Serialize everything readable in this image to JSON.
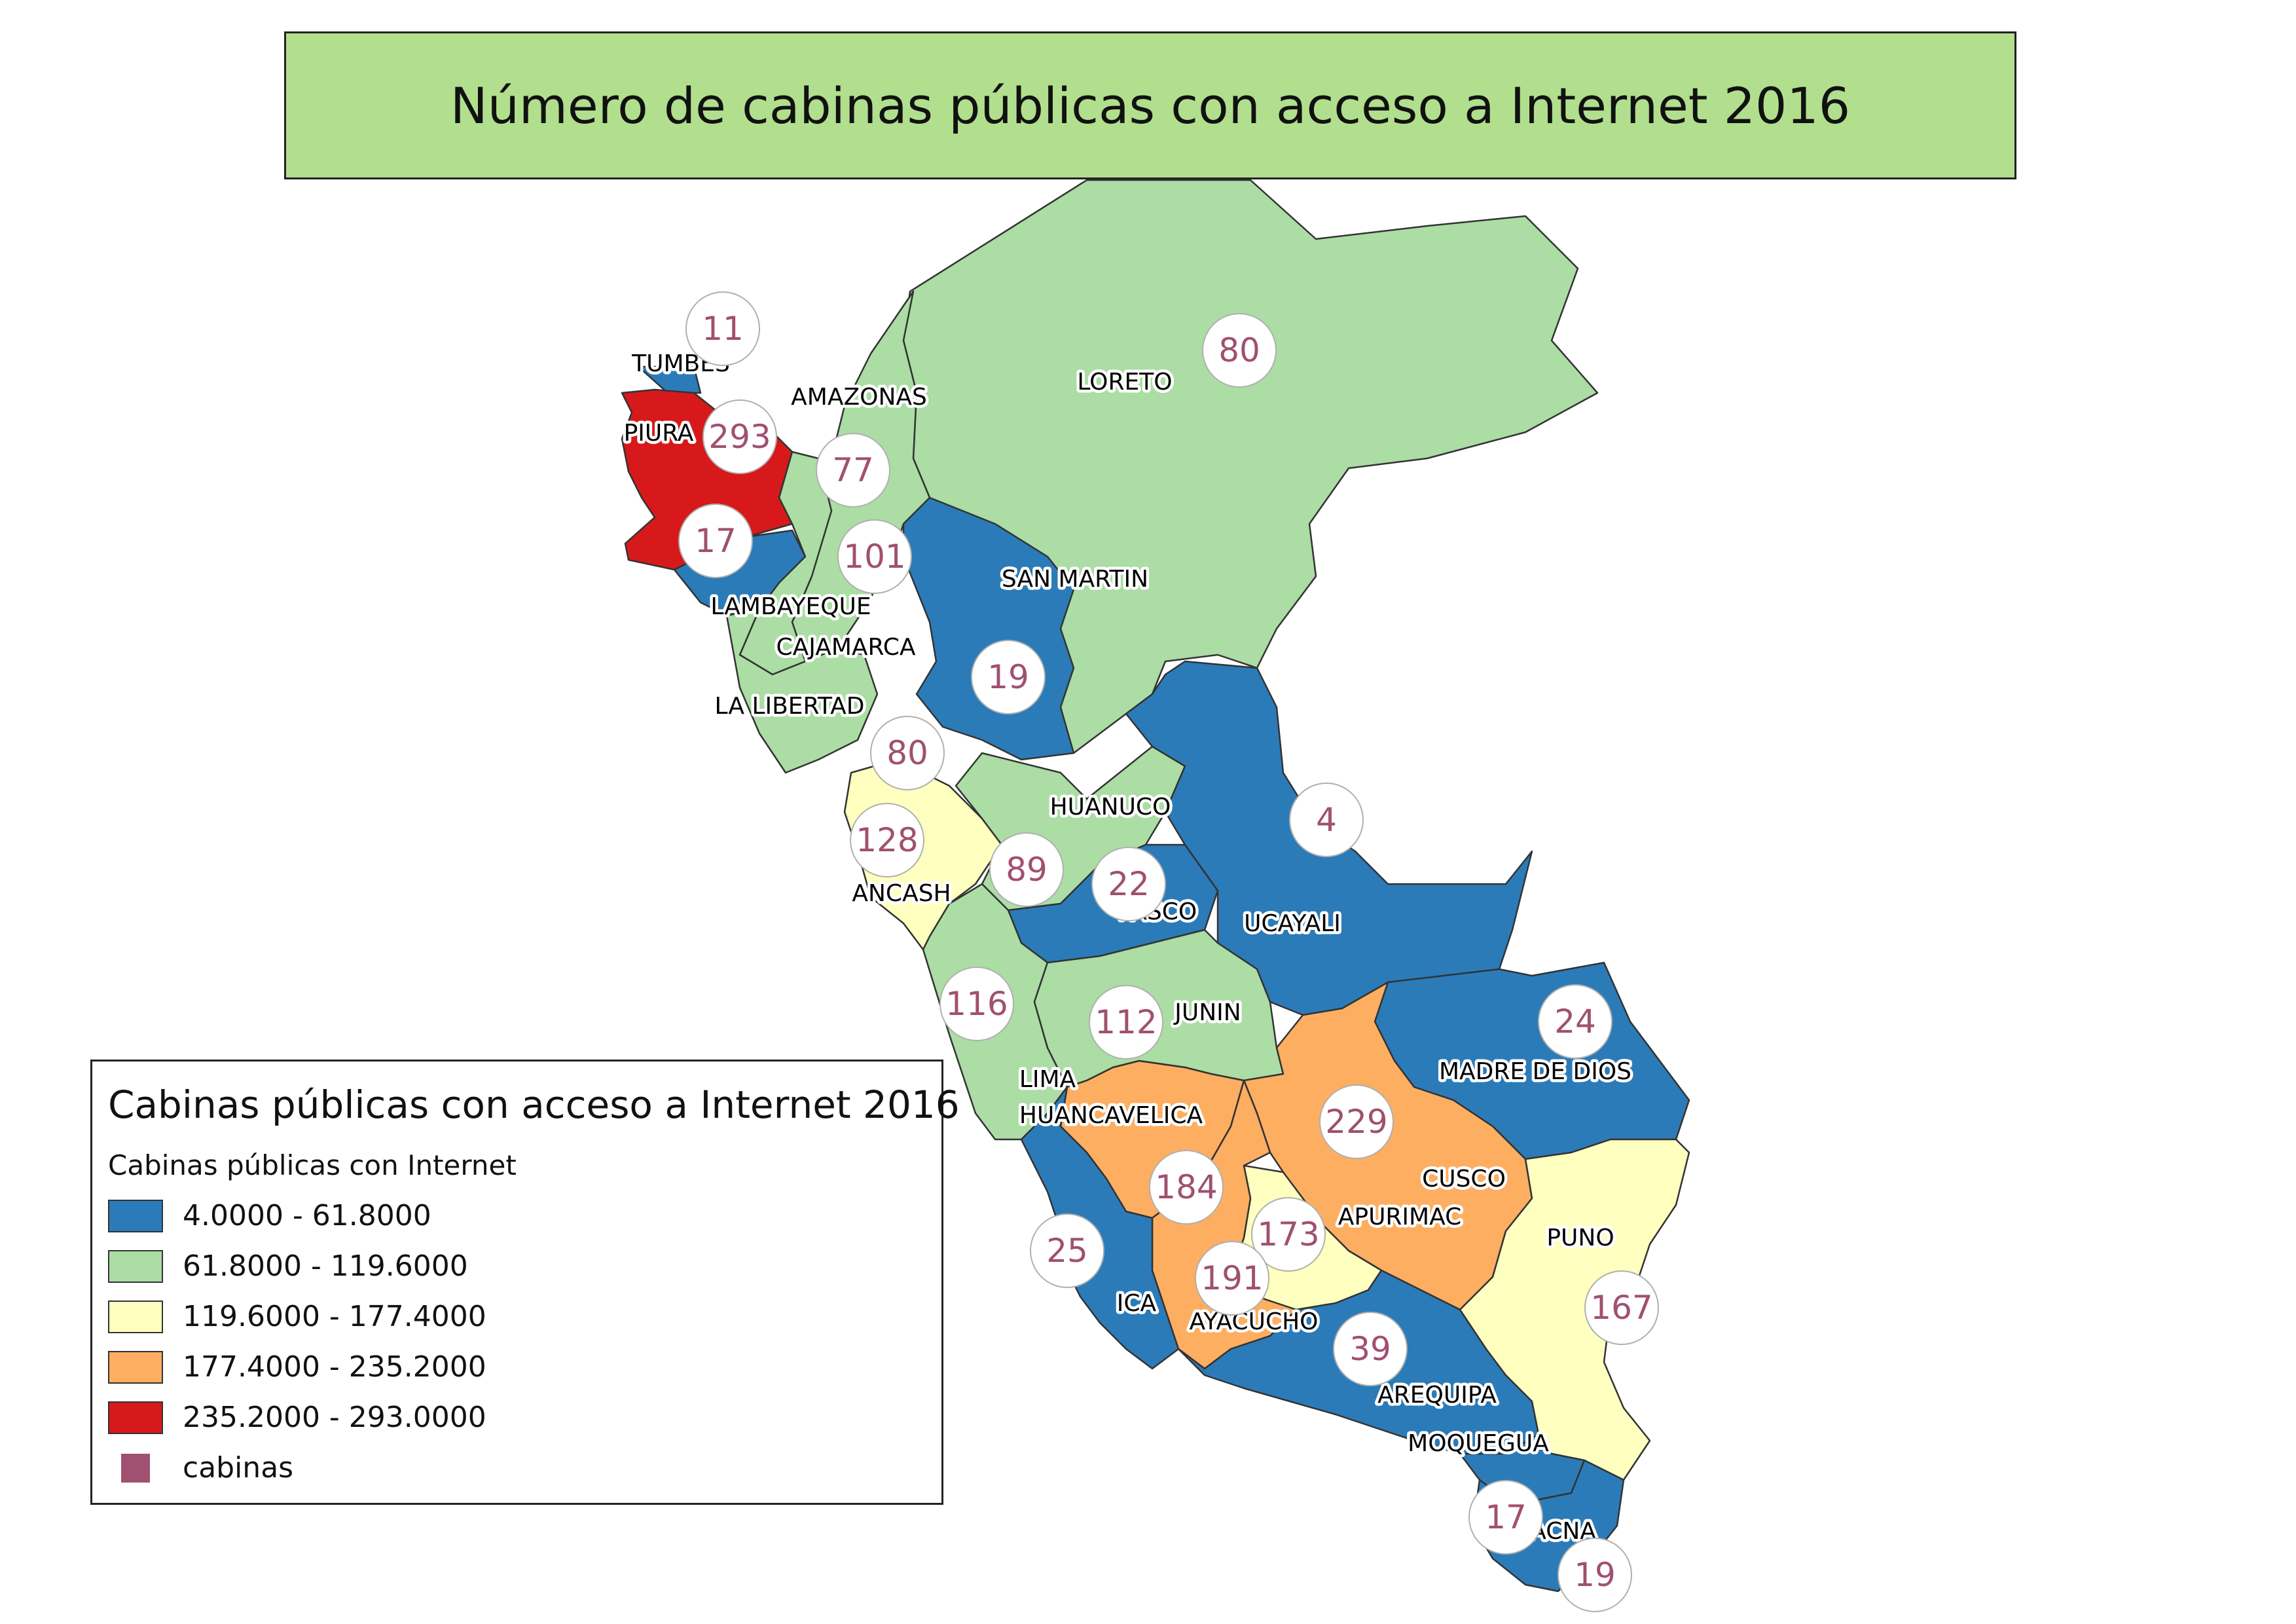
{
  "title": "Número de cabinas públicas con acceso a Internet 2016",
  "colors": {
    "class1": "#2b7bb9",
    "class2": "#abdda4",
    "class3": "#ffffbf",
    "class4": "#fdae61",
    "class5": "#d7191c",
    "marker": "#a05070",
    "title_bg": "#b1df8e"
  },
  "legend": {
    "title": "Cabinas públicas con acceso a Internet 2016",
    "subtitle": "Cabinas públicas con Internet",
    "classes": [
      {
        "label": "4.0000 - 61.8000",
        "color": "#2b7bb9"
      },
      {
        "label": "61.8000 - 119.6000",
        "color": "#abdda4"
      },
      {
        "label": "119.6000 - 177.4000",
        "color": "#ffffbf"
      },
      {
        "label": "177.4000 - 235.2000",
        "color": "#fdae61"
      },
      {
        "label": "235.2000 - 293.0000",
        "color": "#d7191c"
      }
    ],
    "marker_label": "cabinas"
  },
  "regions": [
    {
      "id": "tumbes",
      "name": "TUMBES",
      "value": 11
    },
    {
      "id": "piura",
      "name": "PIURA",
      "value": 293
    },
    {
      "id": "lambayeque",
      "name": "LAMBAYEQUE",
      "value": 17
    },
    {
      "id": "amazonas",
      "name": "AMAZONAS",
      "value": 77
    },
    {
      "id": "cajamarca",
      "name": "CAJAMARCA",
      "value": 101
    },
    {
      "id": "la-libertad",
      "name": "LA LIBERTAD",
      "value": 80
    },
    {
      "id": "loreto",
      "name": "LORETO",
      "value": 80
    },
    {
      "id": "san-martin",
      "name": "SAN MARTIN",
      "value": 19
    },
    {
      "id": "ancash",
      "name": "ANCASH",
      "value": 128
    },
    {
      "id": "huanuco",
      "name": "HUANUCO",
      "value": 89
    },
    {
      "id": "pasco",
      "name": "PASCO",
      "value": 22
    },
    {
      "id": "ucayali",
      "name": "UCAYALI",
      "value": 4
    },
    {
      "id": "lima",
      "name": "LIMA",
      "value": 116
    },
    {
      "id": "junin",
      "name": "JUNIN",
      "value": 112
    },
    {
      "id": "madre-de-dios",
      "name": "MADRE DE DIOS",
      "value": 24
    },
    {
      "id": "huancavelica",
      "name": "HUANCAVELICA",
      "value": 184
    },
    {
      "id": "cusco",
      "name": "CUSCO",
      "value": 229
    },
    {
      "id": "apurimac",
      "name": "APURIMAC",
      "value": 173
    },
    {
      "id": "ayacucho",
      "name": "AYACUCHO",
      "value": 191
    },
    {
      "id": "ica",
      "name": "ICA",
      "value": 25
    },
    {
      "id": "puno",
      "name": "PUNO",
      "value": 167
    },
    {
      "id": "arequipa",
      "name": "AREQUIPA",
      "value": 39
    },
    {
      "id": "moquegua",
      "name": "MOQUEGUA",
      "value": 17
    },
    {
      "id": "tacna",
      "name": "TACNA",
      "value": 19
    }
  ]
}
